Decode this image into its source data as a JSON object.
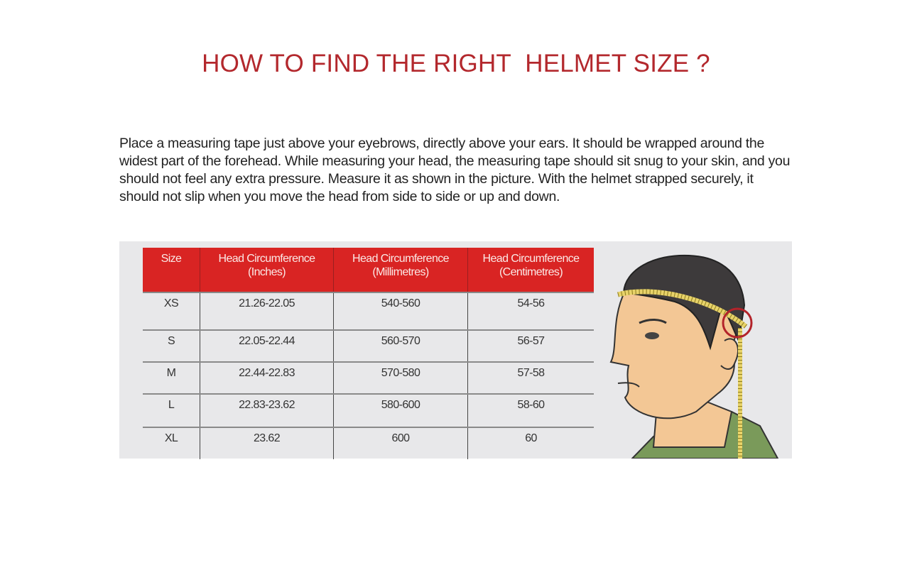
{
  "title": "HOW TO FIND THE RIGHT  HELMET SIZE ?",
  "instructions": "Place a measuring tape just above your eyebrows, directly above your ears. It should be wrapped around the widest part of the forehead. While measuring your head, the measuring tape should sit snug to your skin, and you should not feel any extra pressure. Measure it as shown in the picture. With the helmet strapped securely, it should not slip when you move the head from side to side or up and down.",
  "size_table": {
    "headers": [
      [
        "Size",
        ""
      ],
      [
        "Head Circumference",
        "(Inches)"
      ],
      [
        "Head Circumference",
        "(Millimetres)"
      ],
      [
        "Head Circumference",
        "(Centimetres)"
      ]
    ],
    "rows": [
      [
        "XS",
        "21.26-22.05",
        "540-560",
        "54-56"
      ],
      [
        "S",
        "22.05-22.44",
        "560-570",
        "56-57"
      ],
      [
        "M",
        "22.44-22.83",
        "570-580",
        "57-58"
      ],
      [
        "L",
        "22.83-23.62",
        "580-600",
        "58-60"
      ],
      [
        "XL",
        "23.62",
        "600",
        "60"
      ]
    ]
  },
  "colors": {
    "title": "#b3282d",
    "header_bg": "#d92423",
    "panel_bg": "#e8e8ea",
    "tape": "#e8d36a"
  },
  "illustration": "head-measuring-tape-illustration"
}
